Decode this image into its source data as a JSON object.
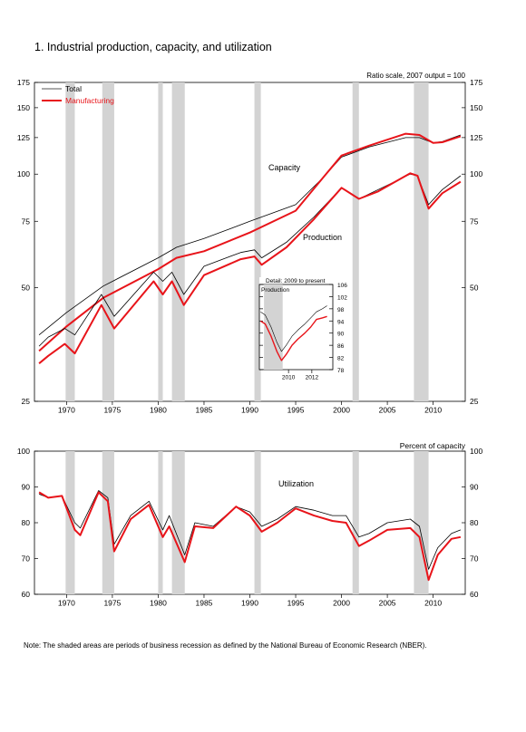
{
  "figure_title": "1.  Industrial production, capacity, and utilization",
  "note": "Note: The shaded areas are periods of business recession as defined by the National Bureau of Economic Research (NBER).",
  "colors": {
    "total": "#000000",
    "manufacturing": "#e8141a",
    "recession": "#d3d3d3"
  },
  "chart_data": [
    {
      "type": "line",
      "y_scale": "log",
      "scale_note": "Ratio scale, 2007 output = 100",
      "ylim": [
        25,
        175
      ],
      "yticks": [
        25,
        50,
        75,
        100,
        125,
        150,
        175
      ],
      "xlim": [
        1966.5,
        2013.5
      ],
      "xticks": [
        1970,
        1975,
        1980,
        1985,
        1990,
        1995,
        2000,
        2005,
        2010
      ],
      "legend": {
        "position": "top-left",
        "entries": [
          {
            "name": "Total",
            "color": "#000000"
          },
          {
            "name": "Manufacturing",
            "color": "#e8141a"
          }
        ]
      },
      "annotations": [
        "Capacity",
        "Production"
      ],
      "recessions": [
        [
          1969.9,
          1970.9
        ],
        [
          1973.9,
          1975.2
        ],
        [
          1980.0,
          1980.5
        ],
        [
          1981.5,
          1982.9
        ],
        [
          1990.5,
          1991.2
        ],
        [
          2001.2,
          2001.9
        ],
        [
          2007.9,
          2009.5
        ]
      ],
      "series": [
        {
          "name": "Total",
          "group": "Capacity",
          "x": [
            1967,
            1970,
            1974,
            1980,
            1982,
            1985,
            1990,
            1995,
            1998,
            2000,
            2003,
            2007,
            2008.5,
            2010,
            2011,
            2013
          ],
          "y": [
            37.5,
            43,
            50.5,
            60,
            64,
            67.5,
            75,
            83,
            98,
            111,
            118,
            125,
            125,
            121,
            122,
            127
          ]
        },
        {
          "name": "Manufacturing",
          "group": "Capacity",
          "x": [
            1967,
            1970,
            1974,
            1980,
            1982,
            1985,
            1990,
            1995,
            1998,
            2000,
            2003,
            2007,
            2008.5,
            2010,
            2011,
            2013
          ],
          "y": [
            34,
            39.5,
            47,
            56,
            60,
            62.5,
            70,
            80,
            98,
            112,
            119,
            128,
            127,
            121,
            121.5,
            126
          ]
        },
        {
          "name": "Total",
          "group": "Production",
          "x": [
            1967,
            1968,
            1969.8,
            1970.9,
            1973.8,
            1975.2,
            1979.5,
            1980.5,
            1981.5,
            1982.8,
            1985,
            1989,
            1990.5,
            1991.3,
            1994,
            1997,
            2000,
            2001.9,
            2004,
            2007.5,
            2008.3,
            2009.5,
            2011,
            2013
          ],
          "y": [
            35,
            37,
            39,
            37.5,
            48,
            42,
            55,
            52,
            55,
            48,
            57,
            62,
            63,
            60,
            66,
            77,
            92,
            86,
            91,
            100,
            99,
            83,
            91,
            99
          ]
        },
        {
          "name": "Manufacturing",
          "group": "Production",
          "x": [
            1967,
            1968,
            1969.8,
            1970.9,
            1973.8,
            1975.2,
            1979.5,
            1980.5,
            1981.5,
            1982.8,
            1985,
            1989,
            1990.5,
            1991.3,
            1994,
            1997,
            2000,
            2001.9,
            2004,
            2007.5,
            2008.3,
            2009.5,
            2011,
            2013
          ],
          "y": [
            31.5,
            33,
            35.5,
            33.5,
            45,
            39,
            52,
            48,
            52,
            45,
            54,
            59.5,
            60.5,
            57.5,
            64,
            76,
            92,
            86,
            90,
            100.5,
            99,
            81,
            89,
            95.5
          ]
        }
      ]
    },
    {
      "type": "line",
      "title": "Detail: 2009 to present",
      "ylabel": "Production",
      "ylim": [
        78,
        106
      ],
      "yticks": [
        78,
        82,
        86,
        90,
        94,
        98,
        102,
        106
      ],
      "xlim": [
        2007.5,
        2013.8
      ],
      "xticks": [
        2010,
        2012
      ],
      "recessions": [
        [
          2007.9,
          2009.5
        ]
      ],
      "series": [
        {
          "name": "Total",
          "x": [
            2007.6,
            2008.0,
            2008.5,
            2009.0,
            2009.4,
            2009.8,
            2010.3,
            2010.8,
            2011.4,
            2011.9,
            2012.4,
            2012.9,
            2013.3
          ],
          "y": [
            97,
            96,
            92,
            87,
            84,
            86,
            89,
            91,
            93,
            95,
            97,
            98,
            99
          ]
        },
        {
          "name": "Manufacturing",
          "x": [
            2007.6,
            2008.0,
            2008.5,
            2009.0,
            2009.4,
            2009.8,
            2010.3,
            2010.8,
            2011.4,
            2011.9,
            2012.4,
            2012.9,
            2013.3
          ],
          "y": [
            94,
            93,
            89,
            84,
            81,
            83,
            86,
            88,
            90,
            92,
            94.5,
            95,
            95.5
          ]
        }
      ]
    },
    {
      "type": "line",
      "scale_note": "Percent of capacity",
      "annotations": [
        "Utilization"
      ],
      "ylim": [
        60,
        100
      ],
      "yticks": [
        60,
        70,
        80,
        90,
        100
      ],
      "xlim": [
        1966.5,
        2013.5
      ],
      "xticks": [
        1970,
        1975,
        1980,
        1985,
        1990,
        1995,
        2000,
        2005,
        2010
      ],
      "recessions": [
        [
          1969.9,
          1970.9
        ],
        [
          1973.9,
          1975.2
        ],
        [
          1980.0,
          1980.5
        ],
        [
          1981.5,
          1982.9
        ],
        [
          1990.5,
          1991.2
        ],
        [
          2001.2,
          2001.9
        ],
        [
          2007.9,
          2009.5
        ]
      ],
      "series": [
        {
          "name": "Total",
          "x": [
            1967,
            1968,
            1969.5,
            1970.9,
            1971.5,
            1973.5,
            1974.5,
            1975.2,
            1977,
            1979,
            1980.5,
            1981.2,
            1982.9,
            1984,
            1986,
            1988.5,
            1990,
            1991.3,
            1993,
            1995,
            1997,
            1999,
            2000.5,
            2001.9,
            2003,
            2005,
            2007.5,
            2008.5,
            2009.5,
            2010.5,
            2012,
            2013
          ],
          "y": [
            88,
            87,
            87.5,
            80,
            78.5,
            89,
            87,
            74,
            82,
            86,
            78,
            82,
            71,
            80,
            79,
            84.5,
            83,
            79,
            81,
            84.5,
            83.5,
            82,
            82,
            76,
            77,
            80,
            81,
            79,
            67,
            73,
            77,
            78
          ]
        },
        {
          "name": "Manufacturing",
          "x": [
            1967,
            1968,
            1969.5,
            1970.9,
            1971.5,
            1973.5,
            1974.5,
            1975.2,
            1977,
            1979,
            1980.5,
            1981.2,
            1982.9,
            1984,
            1986,
            1988.5,
            1990,
            1991.3,
            1993,
            1995,
            1997,
            1999,
            2000.5,
            2001.9,
            2003,
            2005,
            2007.5,
            2008.5,
            2009.5,
            2010.5,
            2012,
            2013
          ],
          "y": [
            88.5,
            87,
            87.5,
            78,
            76.5,
            88.5,
            86,
            72,
            81,
            85,
            76,
            79,
            69,
            79,
            78.5,
            84.5,
            82,
            77.5,
            80,
            84,
            82,
            80.5,
            80,
            73.5,
            75,
            78,
            78.5,
            76,
            64,
            71,
            75.5,
            76
          ]
        }
      ]
    }
  ]
}
